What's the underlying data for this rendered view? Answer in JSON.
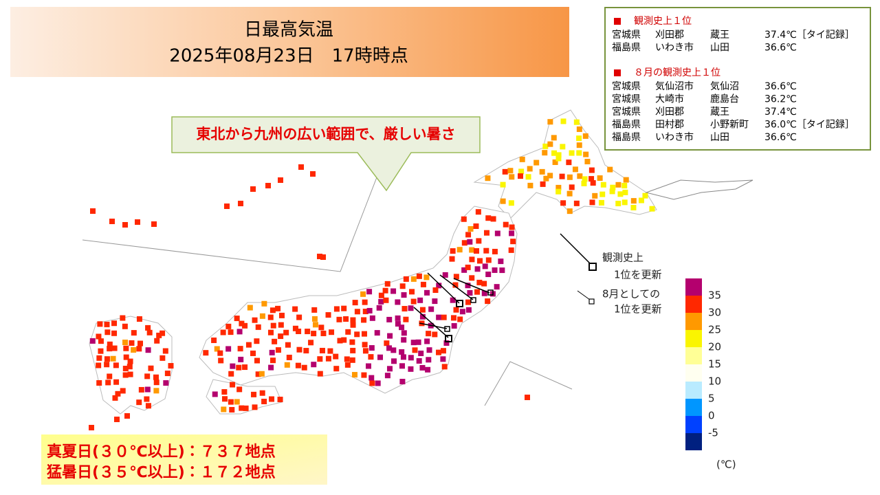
{
  "header": {
    "title": "日最高気温",
    "subtitle": "2025年08月23日　17時時点"
  },
  "callout": "東北から九州の広い範囲で、厳しい暑さ",
  "records": [
    {
      "heading": "観測史上１位",
      "rows": [
        [
          "宮城県",
          "刈田郡",
          "蔵王",
          "37.4℃［タイ記録］"
        ],
        [
          "福島県",
          "いわき市",
          "山田",
          "36.6℃"
        ]
      ]
    },
    {
      "heading": "８月の観測史上１位",
      "rows": [
        [
          "宮城県",
          "気仙沼市",
          "気仙沼",
          "36.6℃"
        ],
        [
          "宮城県",
          "大崎市",
          "鹿島台",
          "36.2℃"
        ],
        [
          "宮城県",
          "刈田郡",
          "蔵王",
          "37.4℃"
        ],
        [
          "福島県",
          "田村郡",
          "小野新町",
          "36.0℃［タイ記録］"
        ],
        [
          "福島県",
          "いわき市",
          "山田",
          "36.6℃"
        ]
      ]
    }
  ],
  "marker_legend": [
    {
      "lines": [
        "観測史上",
        "1位を更新"
      ]
    },
    {
      "lines": [
        "8月としての",
        "1位を更新"
      ]
    }
  ],
  "color_scale": {
    "colors": [
      "#b4006e",
      "#ff2800",
      "#ff9900",
      "#faf500",
      "#ffff96",
      "#fffff0",
      "#b9ebff",
      "#0096ff",
      "#0041ff",
      "#002080"
    ],
    "ticks": [
      35,
      30,
      25,
      20,
      15,
      10,
      5,
      0,
      -5
    ],
    "unit": "(℃)"
  },
  "summary": [
    "真夏日(３０℃以上)：７３７地点",
    "猛暑日(３５℃以上)：１７２地点"
  ]
}
